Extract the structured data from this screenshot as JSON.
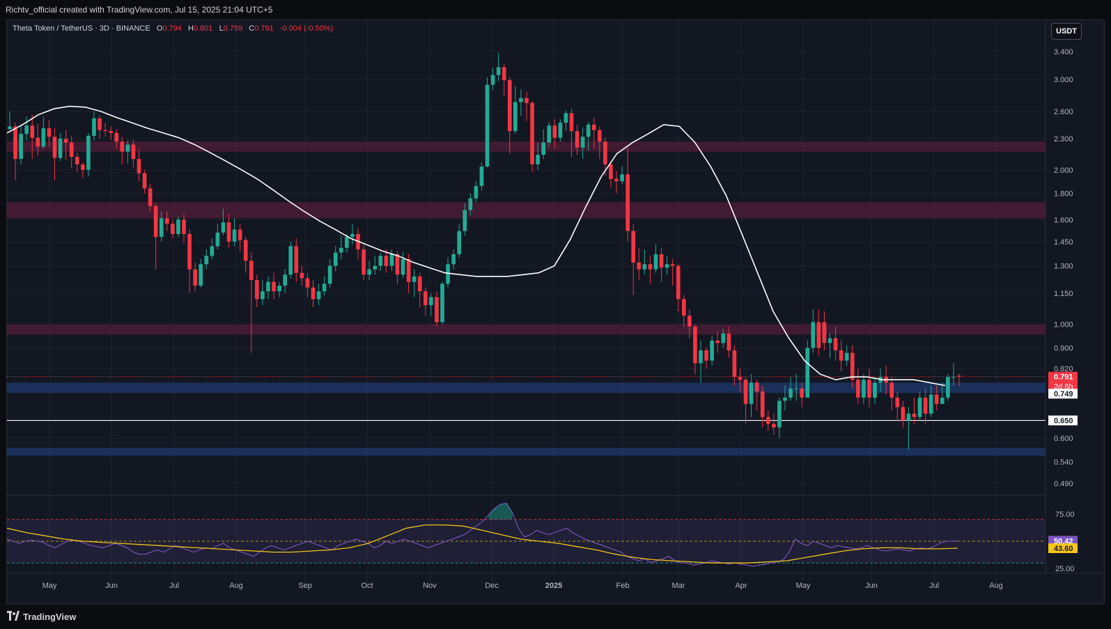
{
  "header": {
    "watermark": "Richtv_official created with TradingView.com, Jul 15, 2025 21:04 UTC+5"
  },
  "symbol": {
    "name": "Theta Token / TetherUS · 3D · BINANCE",
    "open_label": "O",
    "open": "0.794",
    "high_label": "H",
    "high": "0.801",
    "low_label": "L",
    "low": "0.759",
    "close_label": "C",
    "close": "0.791",
    "change": "-0.004 (-0.50%)"
  },
  "currency_button": "USDT",
  "footer": {
    "brand": "TradingView"
  },
  "colors": {
    "bull": "#22ab94",
    "bear": "#f23645",
    "ma": "#ffffff",
    "rsi": "#7e57c2",
    "rsi_ma": "#f5c518",
    "zone_red": "#5b1d3a",
    "zone_blue": "#1e3a6e"
  },
  "chart_data": {
    "type": "candlestick",
    "price_scale": "log",
    "price_ticks": [
      "3.400",
      "3.000",
      "2.600",
      "2.300",
      "2.000",
      "1.800",
      "1.600",
      "1.450",
      "1.300",
      "1.150",
      "1.000",
      "0.900",
      "0.820",
      "0.749",
      "0.650",
      "0.600",
      "0.540",
      "0.490"
    ],
    "price_tick_values": [
      3.4,
      3.0,
      2.6,
      2.3,
      2.0,
      1.8,
      1.6,
      1.45,
      1.3,
      1.15,
      1.0,
      0.9,
      0.82,
      0.749,
      0.65,
      0.6,
      0.54,
      0.49
    ],
    "last_price": {
      "label": "0.791",
      "countdown": "2d 8h",
      "value": 0.791
    },
    "ma_label": {
      "label": "0.749",
      "value": 0.749
    },
    "support_line": {
      "label": "0.650",
      "value": 0.65
    },
    "zones": [
      {
        "kind": "resistance",
        "low": 2.17,
        "high": 2.27
      },
      {
        "kind": "resistance",
        "low": 1.61,
        "high": 1.73
      },
      {
        "kind": "resistance",
        "low": 0.955,
        "high": 1.0
      },
      {
        "kind": "support",
        "low": 0.735,
        "high": 0.77
      },
      {
        "kind": "support",
        "low": 0.555,
        "high": 0.575
      }
    ],
    "x_labels": [
      "May",
      "Jun",
      "Jul",
      "Aug",
      "Sep",
      "Oct",
      "Nov",
      "Dec",
      "2025",
      "Feb",
      "Mar",
      "Apr",
      "May",
      "Jun",
      "Jul",
      "Aug"
    ],
    "candles": [
      [
        2.4,
        2.43,
        2.6,
        2.4
      ],
      [
        2.43,
        2.1,
        2.47,
        1.91
      ],
      [
        2.1,
        2.35,
        2.44,
        2.05
      ],
      [
        2.35,
        2.44,
        2.54,
        2.28
      ],
      [
        2.44,
        2.31,
        2.56,
        2.1
      ],
      [
        2.31,
        2.22,
        2.46,
        2.13
      ],
      [
        2.22,
        2.41,
        2.54,
        2.2
      ],
      [
        2.41,
        2.32,
        2.5,
        2.22
      ],
      [
        2.32,
        2.11,
        2.41,
        1.91
      ],
      [
        2.11,
        2.3,
        2.36,
        2.08
      ],
      [
        2.3,
        2.26,
        2.39,
        2.09
      ],
      [
        2.26,
        2.12,
        2.33,
        2.02
      ],
      [
        2.12,
        2.05,
        2.16,
        1.98
      ],
      [
        2.05,
        2.0,
        2.07,
        1.93
      ],
      [
        2.0,
        2.33,
        2.36,
        1.94
      ],
      [
        2.33,
        2.52,
        2.6,
        2.28
      ],
      [
        2.52,
        2.39,
        2.55,
        2.3
      ],
      [
        2.39,
        2.38,
        2.47,
        2.32
      ],
      [
        2.38,
        2.36,
        2.43,
        2.29
      ],
      [
        2.36,
        2.27,
        2.4,
        2.2
      ],
      [
        2.27,
        2.17,
        2.32,
        2.05
      ],
      [
        2.17,
        2.24,
        2.28,
        2.06
      ],
      [
        2.24,
        2.1,
        2.29,
        2.02
      ],
      [
        2.1,
        1.97,
        2.19,
        1.9
      ],
      [
        1.97,
        1.84,
        2.0,
        1.8
      ],
      [
        1.84,
        1.7,
        1.88,
        1.66
      ],
      [
        1.7,
        1.48,
        1.72,
        1.28
      ],
      [
        1.48,
        1.61,
        1.66,
        1.45
      ],
      [
        1.61,
        1.57,
        1.66,
        1.52
      ],
      [
        1.57,
        1.5,
        1.6,
        1.47
      ],
      [
        1.5,
        1.6,
        1.62,
        1.48
      ],
      [
        1.6,
        1.5,
        1.64,
        1.44
      ],
      [
        1.5,
        1.28,
        1.53,
        1.15
      ],
      [
        1.28,
        1.19,
        1.32,
        1.16
      ],
      [
        1.19,
        1.31,
        1.34,
        1.18
      ],
      [
        1.31,
        1.36,
        1.4,
        1.28
      ],
      [
        1.36,
        1.42,
        1.47,
        1.34
      ],
      [
        1.42,
        1.51,
        1.57,
        1.4
      ],
      [
        1.51,
        1.58,
        1.68,
        1.49
      ],
      [
        1.58,
        1.45,
        1.64,
        1.41
      ],
      [
        1.45,
        1.53,
        1.61,
        1.42
      ],
      [
        1.53,
        1.46,
        1.57,
        1.39
      ],
      [
        1.46,
        1.33,
        1.48,
        1.26
      ],
      [
        1.33,
        1.22,
        1.38,
        0.88
      ],
      [
        1.22,
        1.12,
        1.25,
        1.08
      ],
      [
        1.12,
        1.16,
        1.22,
        1.09
      ],
      [
        1.16,
        1.21,
        1.24,
        1.12
      ],
      [
        1.21,
        1.16,
        1.26,
        1.12
      ],
      [
        1.16,
        1.19,
        1.21,
        1.13
      ],
      [
        1.19,
        1.25,
        1.28,
        1.15
      ],
      [
        1.25,
        1.42,
        1.45,
        1.23
      ],
      [
        1.42,
        1.26,
        1.47,
        1.21
      ],
      [
        1.26,
        1.23,
        1.3,
        1.19
      ],
      [
        1.23,
        1.18,
        1.26,
        1.13
      ],
      [
        1.18,
        1.12,
        1.22,
        1.08
      ],
      [
        1.12,
        1.16,
        1.2,
        1.09
      ],
      [
        1.16,
        1.2,
        1.24,
        1.14
      ],
      [
        1.2,
        1.3,
        1.34,
        1.18
      ],
      [
        1.3,
        1.38,
        1.42,
        1.27
      ],
      [
        1.38,
        1.41,
        1.49,
        1.34
      ],
      [
        1.41,
        1.48,
        1.5,
        1.38
      ],
      [
        1.48,
        1.5,
        1.57,
        1.43
      ],
      [
        1.5,
        1.4,
        1.54,
        1.34
      ],
      [
        1.4,
        1.25,
        1.43,
        1.22
      ],
      [
        1.25,
        1.28,
        1.33,
        1.22
      ],
      [
        1.28,
        1.3,
        1.36,
        1.25
      ],
      [
        1.3,
        1.36,
        1.38,
        1.27
      ],
      [
        1.36,
        1.3,
        1.4,
        1.26
      ],
      [
        1.3,
        1.37,
        1.4,
        1.27
      ],
      [
        1.37,
        1.25,
        1.39,
        1.2
      ],
      [
        1.25,
        1.34,
        1.38,
        1.23
      ],
      [
        1.34,
        1.21,
        1.37,
        1.15
      ],
      [
        1.21,
        1.24,
        1.28,
        1.13
      ],
      [
        1.24,
        1.16,
        1.26,
        1.08
      ],
      [
        1.16,
        1.09,
        1.18,
        1.04
      ],
      [
        1.09,
        1.13,
        1.15,
        1.04
      ],
      [
        1.13,
        1.01,
        1.16,
        0.99
      ],
      [
        1.01,
        1.2,
        1.21,
        1.0
      ],
      [
        1.2,
        1.31,
        1.35,
        1.18
      ],
      [
        1.31,
        1.37,
        1.4,
        1.28
      ],
      [
        1.37,
        1.52,
        1.57,
        1.35
      ],
      [
        1.52,
        1.67,
        1.72,
        1.49
      ],
      [
        1.67,
        1.76,
        1.8,
        1.63
      ],
      [
        1.76,
        1.86,
        1.9,
        1.73
      ],
      [
        1.86,
        2.03,
        2.07,
        1.82
      ],
      [
        2.03,
        2.93,
        3.03,
        2.02
      ],
      [
        2.93,
        3.06,
        3.16,
        2.86
      ],
      [
        3.06,
        3.17,
        3.38,
        2.98
      ],
      [
        3.17,
        2.99,
        3.22,
        2.79
      ],
      [
        2.99,
        2.38,
        3.03,
        2.15
      ],
      [
        2.38,
        2.71,
        2.91,
        2.35
      ],
      [
        2.71,
        2.76,
        2.87,
        2.55
      ],
      [
        2.76,
        2.7,
        2.84,
        2.49
      ],
      [
        2.7,
        2.05,
        2.72,
        1.98
      ],
      [
        2.05,
        2.14,
        2.26,
        2.0
      ],
      [
        2.14,
        2.26,
        2.4,
        2.1
      ],
      [
        2.26,
        2.44,
        2.48,
        2.22
      ],
      [
        2.44,
        2.31,
        2.51,
        2.2
      ],
      [
        2.31,
        2.47,
        2.51,
        2.27
      ],
      [
        2.47,
        2.58,
        2.61,
        2.38
      ],
      [
        2.58,
        2.38,
        2.63,
        2.12
      ],
      [
        2.38,
        2.21,
        2.45,
        2.14
      ],
      [
        2.21,
        2.32,
        2.42,
        2.1
      ],
      [
        2.32,
        2.45,
        2.48,
        2.18
      ],
      [
        2.45,
        2.39,
        2.53,
        2.2
      ],
      [
        2.39,
        2.27,
        2.43,
        2.1
      ],
      [
        2.27,
        2.05,
        2.31,
        1.95
      ],
      [
        2.05,
        1.92,
        2.08,
        1.85
      ],
      [
        1.92,
        1.9,
        1.99,
        1.8
      ],
      [
        1.9,
        1.96,
        2.03,
        1.88
      ],
      [
        1.96,
        1.52,
        2.21,
        1.45
      ],
      [
        1.52,
        1.32,
        1.57,
        1.14
      ],
      [
        1.32,
        1.28,
        1.41,
        1.22
      ],
      [
        1.28,
        1.31,
        1.4,
        1.25
      ],
      [
        1.31,
        1.28,
        1.36,
        1.2
      ],
      [
        1.28,
        1.37,
        1.43,
        1.26
      ],
      [
        1.37,
        1.29,
        1.41,
        1.21
      ],
      [
        1.29,
        1.31,
        1.36,
        1.25
      ],
      [
        1.31,
        1.3,
        1.34,
        1.19
      ],
      [
        1.3,
        1.12,
        1.31,
        1.06
      ],
      [
        1.12,
        1.04,
        1.14,
        0.99
      ],
      [
        1.04,
        0.99,
        1.07,
        0.94
      ],
      [
        0.99,
        0.84,
        1.0,
        0.8
      ],
      [
        0.84,
        0.89,
        0.93,
        0.77
      ],
      [
        0.89,
        0.85,
        0.9,
        0.82
      ],
      [
        0.85,
        0.93,
        0.95,
        0.83
      ],
      [
        0.93,
        0.92,
        0.97,
        0.88
      ],
      [
        0.92,
        0.96,
        0.98,
        0.9
      ],
      [
        0.96,
        0.89,
        0.99,
        0.86
      ],
      [
        0.89,
        0.79,
        0.91,
        0.76
      ],
      [
        0.79,
        0.78,
        0.82,
        0.74
      ],
      [
        0.78,
        0.7,
        0.79,
        0.64
      ],
      [
        0.7,
        0.77,
        0.8,
        0.66
      ],
      [
        0.77,
        0.74,
        0.78,
        0.68
      ],
      [
        0.74,
        0.66,
        0.76,
        0.63
      ],
      [
        0.66,
        0.64,
        0.68,
        0.62
      ],
      [
        0.64,
        0.63,
        0.67,
        0.61
      ],
      [
        0.63,
        0.71,
        0.72,
        0.6
      ],
      [
        0.71,
        0.72,
        0.76,
        0.68
      ],
      [
        0.72,
        0.75,
        0.79,
        0.71
      ],
      [
        0.75,
        0.75,
        0.8,
        0.71
      ],
      [
        0.75,
        0.72,
        0.77,
        0.69
      ],
      [
        0.72,
        0.9,
        0.93,
        0.72
      ],
      [
        0.9,
        1.01,
        1.07,
        0.88
      ],
      [
        1.01,
        0.9,
        1.07,
        0.87
      ],
      [
        1.01,
        0.92,
        1.06,
        0.89
      ],
      [
        0.92,
        0.94,
        0.96,
        0.86
      ],
      [
        0.94,
        0.89,
        0.99,
        0.85
      ],
      [
        0.89,
        0.85,
        0.93,
        0.81
      ],
      [
        0.85,
        0.88,
        0.91,
        0.83
      ],
      [
        0.88,
        0.78,
        0.91,
        0.75
      ],
      [
        0.78,
        0.72,
        0.82,
        0.7
      ],
      [
        0.72,
        0.78,
        0.8,
        0.7
      ],
      [
        0.78,
        0.72,
        0.82,
        0.69
      ],
      [
        0.72,
        0.77,
        0.79,
        0.7
      ],
      [
        0.77,
        0.79,
        0.82,
        0.74
      ],
      [
        0.79,
        0.77,
        0.83,
        0.73
      ],
      [
        0.77,
        0.72,
        0.79,
        0.68
      ],
      [
        0.72,
        0.69,
        0.74,
        0.65
      ],
      [
        0.69,
        0.65,
        0.71,
        0.63
      ],
      [
        0.65,
        0.67,
        0.69,
        0.57
      ],
      [
        0.67,
        0.66,
        0.72,
        0.64
      ],
      [
        0.66,
        0.72,
        0.74,
        0.65
      ],
      [
        0.72,
        0.67,
        0.75,
        0.64
      ],
      [
        0.67,
        0.73,
        0.76,
        0.66
      ],
      [
        0.73,
        0.7,
        0.76,
        0.68
      ],
      [
        0.7,
        0.72,
        0.77,
        0.7
      ],
      [
        0.72,
        0.79,
        0.8,
        0.71
      ],
      [
        0.79,
        0.79,
        0.84,
        0.76
      ],
      [
        0.794,
        0.791,
        0.801,
        0.759
      ]
    ],
    "ma_series": [
      2.36,
      2.45,
      2.56,
      2.63,
      2.66,
      2.65,
      2.6,
      2.53,
      2.47,
      2.41,
      2.36,
      2.31,
      2.24,
      2.16,
      2.08,
      2.0,
      1.92,
      1.83,
      1.74,
      1.66,
      1.59,
      1.53,
      1.47,
      1.43,
      1.39,
      1.36,
      1.32,
      1.29,
      1.26,
      1.25,
      1.24,
      1.24,
      1.24,
      1.25,
      1.26,
      1.3,
      1.46,
      1.69,
      1.94,
      2.15,
      2.26,
      2.35,
      2.45,
      2.43,
      2.26,
      2.03,
      1.78,
      1.5,
      1.26,
      1.06,
      0.94,
      0.85,
      0.8,
      0.78,
      0.79,
      0.79,
      0.78,
      0.78,
      0.78,
      0.77,
      0.76
    ],
    "rsi": {
      "ticks": [
        "75.00",
        "50.42",
        "43.60",
        "25.00"
      ],
      "tick_values": [
        75,
        50.42,
        43.6,
        25
      ],
      "levels": {
        "upper": 70,
        "middle": 50,
        "lower": 30
      },
      "value": {
        "label": "50.42",
        "value": 50.42
      },
      "ma_value": {
        "label": "43.60",
        "value": 43.6
      },
      "series": [
        52,
        50,
        48,
        50,
        51,
        50,
        49,
        46,
        44,
        47,
        50,
        51,
        50,
        48,
        46,
        45,
        44,
        46,
        48,
        46,
        44,
        40,
        38,
        38,
        40,
        42,
        40,
        43,
        46,
        44,
        42,
        40,
        42,
        44,
        43,
        46,
        48,
        44,
        42,
        40,
        38,
        36,
        40,
        44,
        46,
        44,
        42,
        44,
        46,
        48,
        50,
        48,
        46,
        44,
        42,
        46,
        48,
        50,
        52,
        50,
        48,
        44,
        46,
        50,
        48,
        50,
        52,
        50,
        48,
        46,
        44,
        46,
        48,
        50,
        52,
        54,
        56,
        60,
        64,
        68,
        74,
        80,
        84,
        85,
        76,
        62,
        54,
        56,
        60,
        58,
        56,
        58,
        60,
        62,
        58,
        55,
        52,
        50,
        48,
        46,
        44,
        42,
        40,
        36,
        34,
        32,
        34,
        30,
        32,
        34,
        36,
        32,
        30,
        30,
        28,
        29,
        30,
        32,
        31,
        30,
        29,
        30,
        29,
        28,
        27,
        28,
        29,
        30,
        31,
        33,
        40,
        52,
        48,
        46,
        50,
        48,
        46,
        44,
        46,
        45,
        44,
        43,
        44,
        46,
        44,
        42,
        41,
        42,
        43,
        42,
        41,
        43,
        44,
        43,
        45,
        48,
        50,
        50,
        50.42
      ],
      "ma_series": [
        62,
        58,
        55,
        52,
        50,
        49,
        48,
        47,
        46,
        45,
        44,
        43,
        42,
        41,
        40,
        40,
        41,
        42,
        44,
        48,
        55,
        62,
        65,
        65,
        64,
        60,
        56,
        52,
        50,
        48,
        45,
        42,
        38,
        35,
        33,
        32,
        31,
        30,
        30,
        30,
        31,
        32,
        35,
        38,
        41,
        43,
        44,
        44,
        43,
        43,
        43.6
      ]
    }
  }
}
